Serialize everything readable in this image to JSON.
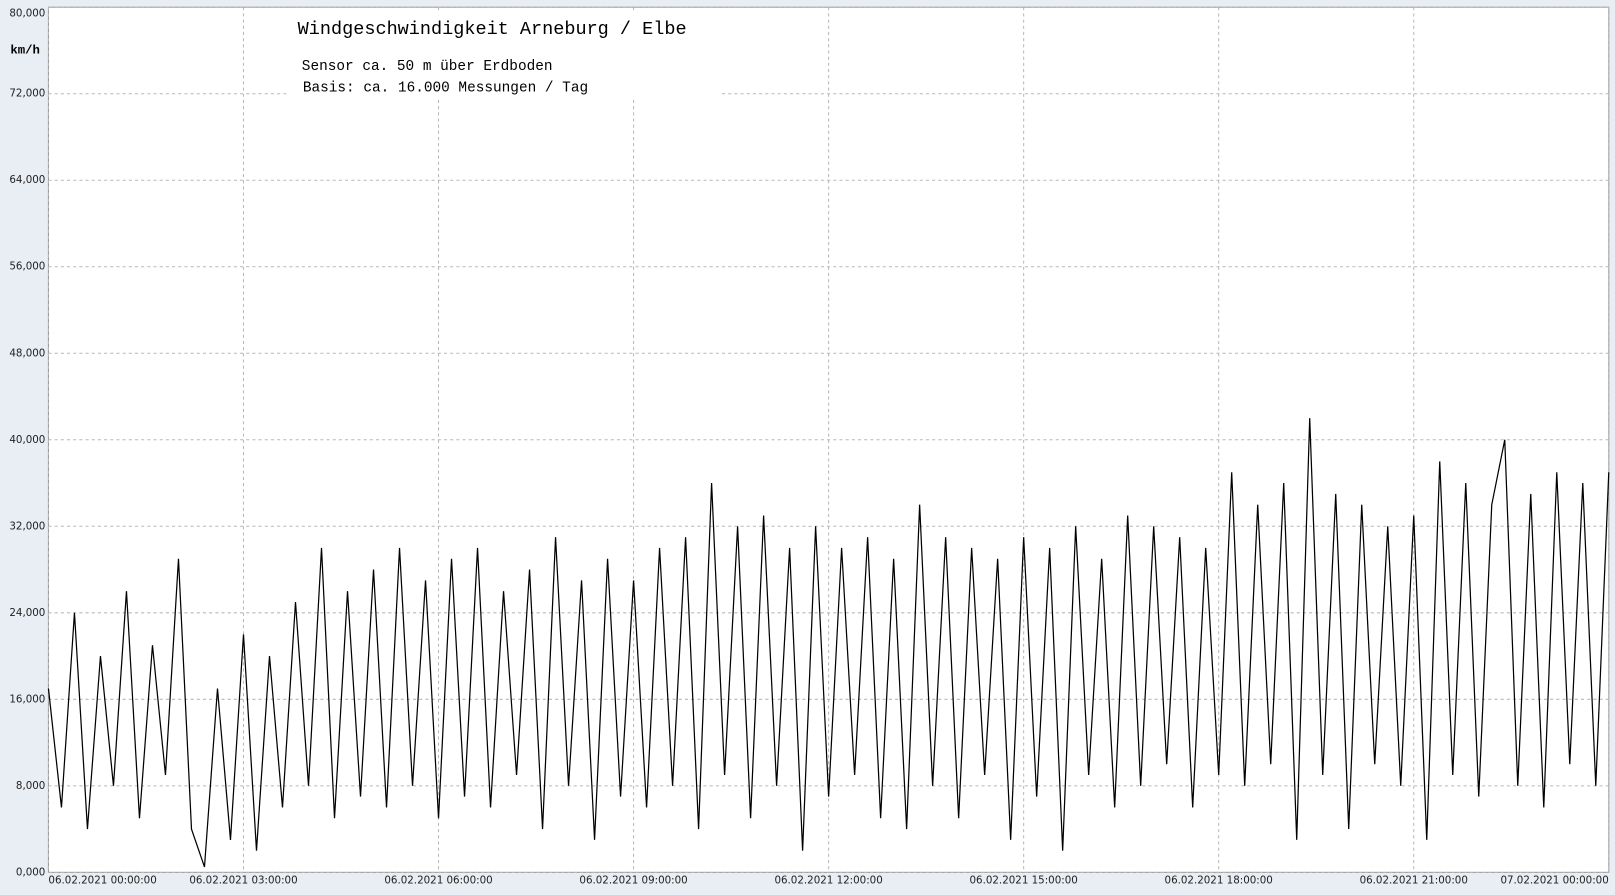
{
  "chart_data": {
    "type": "line",
    "title": "Windgeschwindigkeit  Arneburg / Elbe",
    "subtitles": [
      "Sensor ca. 50 m über Erdboden",
      "Basis: ca. 16.000 Messungen / Tag"
    ],
    "ylabel": "km/h",
    "color": "#000000",
    "grid": true,
    "xlim": [
      0,
      24
    ],
    "xticks": [
      {
        "value": 0,
        "label": "06.02.2021  00:00:00"
      },
      {
        "value": 3,
        "label": "06.02.2021  03:00:00"
      },
      {
        "value": 6,
        "label": "06.02.2021  06:00:00"
      },
      {
        "value": 9,
        "label": "06.02.2021  09:00:00"
      },
      {
        "value": 12,
        "label": "06.02.2021  12:00:00"
      },
      {
        "value": 15,
        "label": "06.02.2021  15:00:00"
      },
      {
        "value": 18,
        "label": "06.02.2021  18:00:00"
      },
      {
        "value": 21,
        "label": "06.02.2021  21:00:00"
      },
      {
        "value": 24,
        "label": "07.02.2021  00:00:00"
      }
    ],
    "ylim": [
      0,
      80
    ],
    "yticks": [
      {
        "value": 0,
        "label": "0,000"
      },
      {
        "value": 8,
        "label": "8,000"
      },
      {
        "value": 16,
        "label": "16,000"
      },
      {
        "value": 24,
        "label": "24,000"
      },
      {
        "value": 32,
        "label": "32,000"
      },
      {
        "value": 40,
        "label": "40,000"
      },
      {
        "value": 48,
        "label": "48,000"
      },
      {
        "value": 56,
        "label": "56,000"
      },
      {
        "value": 64,
        "label": "64,000"
      },
      {
        "value": 72,
        "label": "72,000"
      },
      {
        "value": 80,
        "label": "80,000"
      }
    ],
    "x": [
      0,
      0.2,
      0.4,
      0.6,
      0.8,
      1,
      1.2,
      1.4,
      1.6,
      1.8,
      2,
      2.2,
      2.4,
      2.6,
      2.8,
      3,
      3.2,
      3.4,
      3.6,
      3.8,
      4,
      4.2,
      4.4,
      4.6,
      4.8,
      5,
      5.2,
      5.4,
      5.6,
      5.8,
      6,
      6.2,
      6.4,
      6.6,
      6.8,
      7,
      7.2,
      7.4,
      7.6,
      7.8,
      8,
      8.2,
      8.4,
      8.6,
      8.8,
      9,
      9.2,
      9.4,
      9.6,
      9.8,
      10,
      10.2,
      10.4,
      10.6,
      10.8,
      11,
      11.2,
      11.4,
      11.6,
      11.8,
      12,
      12.2,
      12.4,
      12.6,
      12.8,
      13,
      13.2,
      13.4,
      13.6,
      13.8,
      14,
      14.2,
      14.4,
      14.6,
      14.8,
      15,
      15.2,
      15.4,
      15.6,
      15.8,
      16,
      16.2,
      16.4,
      16.6,
      16.8,
      17,
      17.2,
      17.4,
      17.6,
      17.8,
      18,
      18.2,
      18.4,
      18.6,
      18.8,
      19,
      19.2,
      19.4,
      19.6,
      19.8,
      20,
      20.2,
      20.4,
      20.6,
      20.8,
      21,
      21.2,
      21.4,
      21.6,
      21.8,
      22,
      22.2,
      22.4,
      22.6,
      22.8,
      23,
      23.2,
      23.4,
      23.6,
      23.8,
      24
    ],
    "values": [
      17,
      6,
      24,
      4,
      20,
      8,
      26,
      5,
      21,
      9,
      29,
      4,
      0.5,
      17,
      3,
      22,
      2,
      20,
      6,
      25,
      8,
      30,
      5,
      26,
      7,
      28,
      6,
      30,
      8,
      27,
      5,
      29,
      7,
      30,
      6,
      26,
      9,
      28,
      4,
      31,
      8,
      27,
      3,
      29,
      7,
      27,
      6,
      30,
      8,
      31,
      4,
      36,
      9,
      32,
      5,
      33,
      8,
      30,
      2,
      32,
      7,
      30,
      9,
      31,
      5,
      29,
      4,
      34,
      8,
      31,
      5,
      30,
      9,
      29,
      3,
      31,
      7,
      30,
      2,
      32,
      9,
      29,
      6,
      33,
      8,
      32,
      10,
      31,
      6,
      30,
      9,
      37,
      8,
      34,
      10,
      36,
      3,
      42,
      9,
      35,
      4,
      34,
      10,
      32,
      8,
      33,
      3,
      38,
      9,
      36,
      7,
      34,
      40,
      8,
      35,
      6,
      37,
      10,
      36,
      8,
      37
    ]
  }
}
